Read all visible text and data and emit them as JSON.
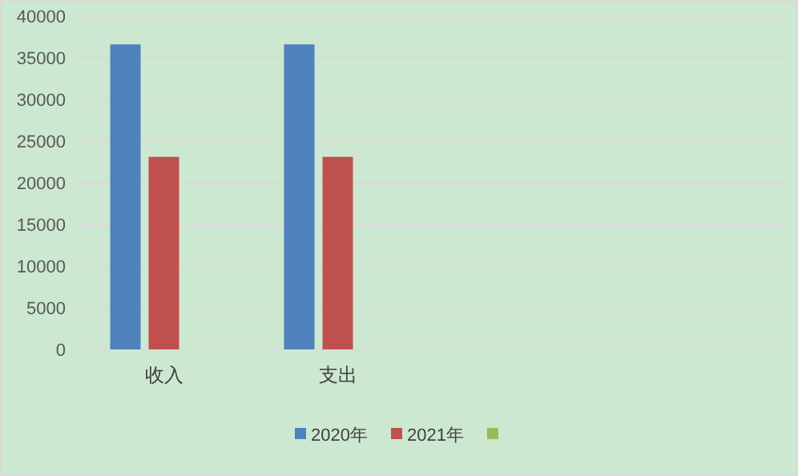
{
  "chart_data": {
    "type": "bar",
    "categories": [
      "收入",
      "支出",
      null,
      null
    ],
    "series": [
      {
        "name": "2020年",
        "color": "#4f81bd",
        "values": [
          36600,
          36600,
          null,
          null
        ]
      },
      {
        "name": "2021年",
        "color": "#c0504d",
        "values": [
          23100,
          23100,
          null,
          null
        ]
      },
      {
        "color": "#9bbb59",
        "values": [
          null,
          null,
          null,
          null
        ]
      }
    ],
    "ylim": [
      0,
      40000
    ],
    "yticks": [
      0,
      5000,
      10000,
      15000,
      20000,
      25000,
      30000,
      35000,
      40000
    ],
    "grid": "y",
    "legend": "bottom"
  }
}
